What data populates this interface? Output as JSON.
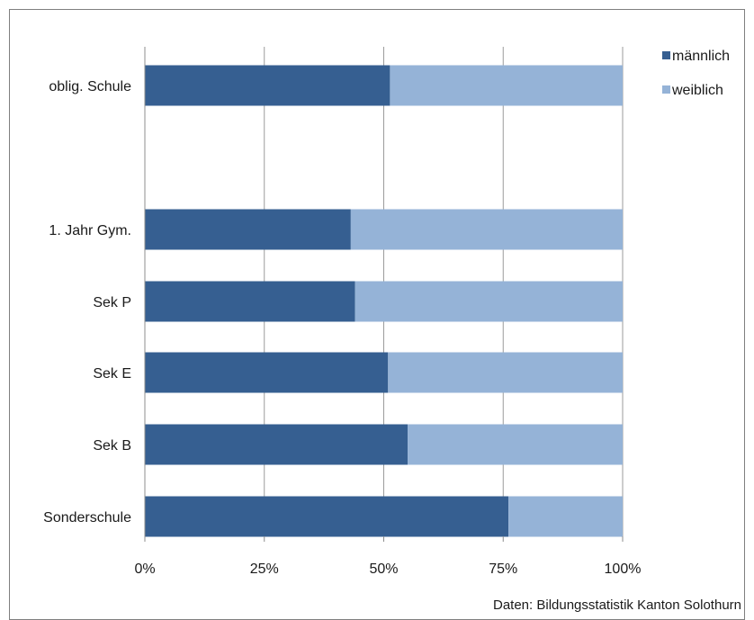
{
  "chart_data": {
    "type": "bar",
    "orientation": "horizontal",
    "stacked": "percent",
    "categories": [
      "oblig. Schule",
      "1. Jahr Gym.",
      "Sek P",
      "Sek E",
      "Sek B",
      "Sonderschule"
    ],
    "series": [
      {
        "name": "männlich",
        "color": "#365f91",
        "values": [
          51.3,
          43.1,
          44.0,
          50.9,
          55.0,
          76.1
        ]
      },
      {
        "name": "weiblich",
        "color": "#95b3d7",
        "values": [
          48.7,
          56.9,
          56.0,
          49.1,
          45.0,
          23.9
        ]
      }
    ],
    "x_ticks": [
      "0%",
      "25%",
      "50%",
      "75%",
      "100%"
    ],
    "xlim": [
      0,
      100
    ],
    "grid": "vertical",
    "legend": "top-right",
    "source": "Daten: Bildungsstatistik Kanton Solothurn"
  }
}
